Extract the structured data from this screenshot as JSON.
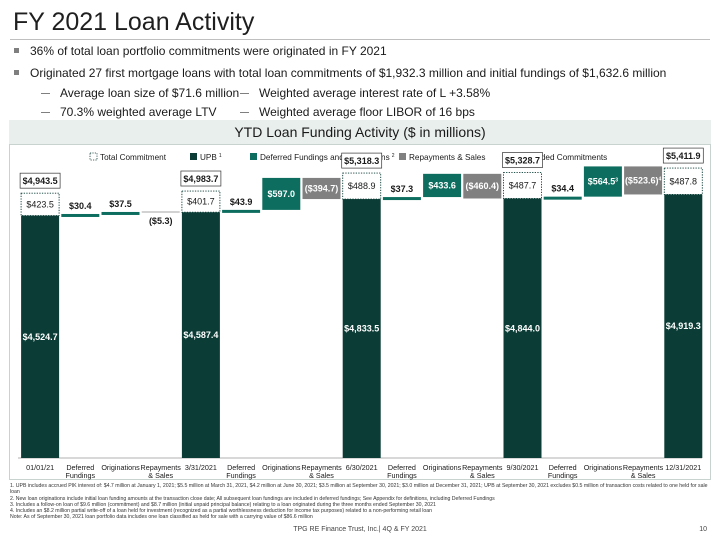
{
  "page": {
    "title": "FY 2021 Loan Activity",
    "page_number": "10",
    "footer": "TPG RE Finance Trust, Inc.| 4Q & FY 2021"
  },
  "bullets": [
    "36% of total loan portfolio commitments were originated in FY 2021",
    "Originated 27 first mortgage loans with total loan commitments of $1,932.3 million and initial fundings of $1,632.6 million"
  ],
  "sub_bullets": [
    "Average loan size of $71.6 million",
    "Weighted average interest rate of L +3.58%",
    "70.3% weighted average LTV",
    "Weighted average floor LIBOR of 16 bps"
  ],
  "chart_data": {
    "type": "bar",
    "subtype": "waterfall",
    "title": "YTD Loan Funding Activity ($ in millions)",
    "ylim": [
      0,
      5600
    ],
    "grid": false,
    "legend_position": "top",
    "legend": [
      {
        "label": "Total Commitment",
        "style": "dotted-outline"
      },
      {
        "label": "UPB",
        "footnote": "1",
        "color": "#0b3d36"
      },
      {
        "label": "Deferred Fundings and Originations",
        "footnote": "2",
        "color": "#0d6e5f"
      },
      {
        "label": "Repayments & Sales",
        "color": "#808080"
      },
      {
        "label": "Unfunded Commitments",
        "style": "dotted-outline"
      }
    ],
    "categories": [
      "01/01/21",
      "Deferred Fundings",
      "Originations",
      "Repayments & Sales",
      "3/31/2021",
      "Deferred Fundings",
      "Originations",
      "Repayments & Sales",
      "6/30/2021",
      "Deferred Fundings",
      "Originations",
      "Repayments & Sales",
      "9/30/2021",
      "Deferred Fundings",
      "Originations",
      "Repayments & Sales",
      "12/31/2021"
    ],
    "bars": [
      {
        "kind": "total",
        "upb": 4524.7,
        "unfunded": 423.5,
        "total": 4943.5,
        "upb_label": "$4,524.7",
        "unfunded_label": "$423.5",
        "total_label": "$4,943.5"
      },
      {
        "kind": "change",
        "base": 4524.7,
        "delta": 30.4,
        "label": "$30.4"
      },
      {
        "kind": "change",
        "base": 4555.1,
        "delta": 37.5,
        "label": "$37.5"
      },
      {
        "kind": "change",
        "base": 4592.6,
        "delta": -5.3,
        "label": "($5.3)"
      },
      {
        "kind": "total",
        "upb": 4587.4,
        "unfunded": 401.7,
        "total": 4983.7,
        "upb_label": "$4,587.4",
        "unfunded_label": "$401.7",
        "total_label": "$4,983.7"
      },
      {
        "kind": "change",
        "base": 4587.4,
        "delta": 43.9,
        "label": "$43.9"
      },
      {
        "kind": "change",
        "base": 4631.3,
        "delta": 597.0,
        "label": "$597.0"
      },
      {
        "kind": "change",
        "base": 5228.3,
        "delta": -394.7,
        "label": "($394.7)"
      },
      {
        "kind": "total",
        "upb": 4833.5,
        "unfunded": 488.9,
        "total": 5318.3,
        "upb_label": "$4,833.5",
        "unfunded_label": "$488.9",
        "total_label": "$5,318.3"
      },
      {
        "kind": "change",
        "base": 4833.5,
        "delta": 37.3,
        "label": "$37.3"
      },
      {
        "kind": "change",
        "base": 4870.8,
        "delta": 433.6,
        "label": "$433.6"
      },
      {
        "kind": "change",
        "base": 5304.4,
        "delta": -460.4,
        "label": "($460.4)"
      },
      {
        "kind": "total",
        "upb": 4844.0,
        "unfunded": 487.7,
        "total": 5328.7,
        "upb_label": "$4,844.0",
        "unfunded_label": "$487.7",
        "total_label": "$5,328.7"
      },
      {
        "kind": "change",
        "base": 4844.0,
        "delta": 34.4,
        "label": "$34.4"
      },
      {
        "kind": "change",
        "base": 4878.4,
        "delta": 564.5,
        "label": "$564.5",
        "footnote": "3"
      },
      {
        "kind": "change",
        "base": 5442.9,
        "delta": -523.6,
        "label": "($523.6)",
        "footnote": "4"
      },
      {
        "kind": "total",
        "upb": 4919.3,
        "unfunded": 487.8,
        "total": 5411.9,
        "upb_label": "$4,919.3",
        "unfunded_label": "$487.8",
        "total_label": "$5,411.9"
      }
    ],
    "colors": {
      "upb": "#0b3d36",
      "originations": "#0d6e5f",
      "deferred": "#0d6e5f",
      "repayments": "#808080"
    }
  },
  "footnotes": [
    "1. UPB includes accrued PIK interest of: $4.7 million at January 1, 2021; $5.5 million at March 31, 2021, $4.2 million at June 30, 2021; $3.5 million at September 30, 2021; $3.0 million at December 31, 2021; UPB at September 30, 2021 excludes $0.5 million of transaction costs related to one held for sale loan",
    "2. New loan originations include initial loan funding amounts at the transaction close date; All subsequent loan fundings are included in deferred fundings; See Appendix for definitions, including Deferred Fundings",
    "3. Includes a follow-on loan of $9.6 million (commitment) and $8.7 million (initial unpaid principal balance) relating to a loan originated during the three months ended September 30, 2021",
    "4. Includes an $8.2 million partial write-off of a loan held for investment (recognized as a partial worthlessness deduction for income tax purposes) related to a non-performing retail loan",
    "Note: As of September 30, 2021 loan portfolio data includes one loan classified as held for sale with a carrying value of $86.6 million"
  ]
}
